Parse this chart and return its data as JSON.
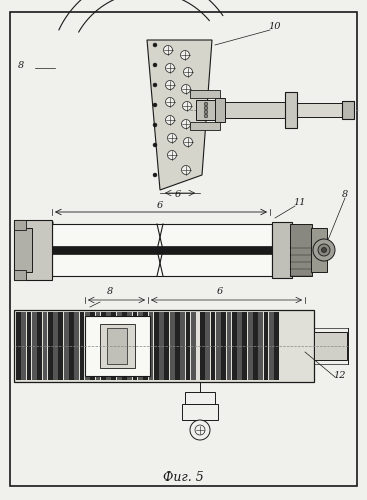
{
  "title": "Фиг. 5",
  "bg_color": "#f0f0ec",
  "line_color": "#1a1a1a",
  "hatch_dark": "#2a2a2a",
  "hatch_light": "#e8e8e0",
  "gray_med": "#aaaaaa",
  "gray_light": "#d8d8d0",
  "white": "#f8f8f4"
}
